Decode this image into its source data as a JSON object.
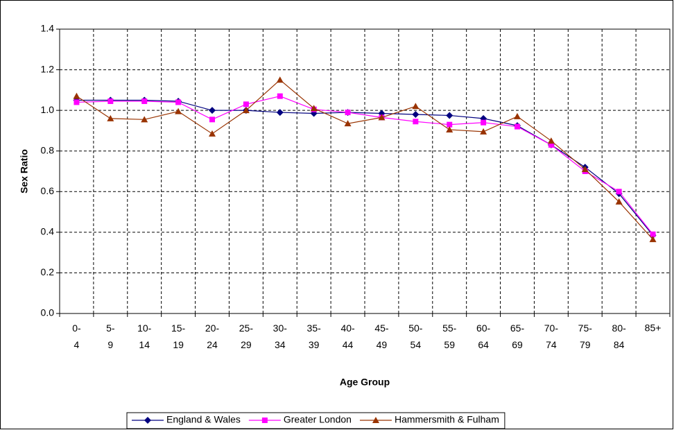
{
  "chart_data": {
    "type": "line",
    "x_label": "Age Group",
    "y_label": "Sex Ratio",
    "categories": [
      "0-4",
      "5-9",
      "10-14",
      "15-19",
      "20-24",
      "25-29",
      "30-34",
      "35-39",
      "40-44",
      "45-49",
      "50-54",
      "55-59",
      "60-64",
      "65-69",
      "70-74",
      "75-79",
      "80-84",
      "85+"
    ],
    "series": [
      {
        "name": "England & Wales",
        "color": "#000080",
        "marker": "diamond",
        "values": [
          1.05,
          1.05,
          1.05,
          1.045,
          1.0,
          1.0,
          0.99,
          0.985,
          0.99,
          0.985,
          0.98,
          0.975,
          0.96,
          0.925,
          0.83,
          0.72,
          0.59,
          0.385
        ]
      },
      {
        "name": "Greater London",
        "color": "#ff00ff",
        "marker": "square",
        "values": [
          1.04,
          1.045,
          1.045,
          1.04,
          0.955,
          1.03,
          1.07,
          1.005,
          0.99,
          0.965,
          0.945,
          0.93,
          0.94,
          0.92,
          0.83,
          0.7,
          0.6,
          0.39
        ]
      },
      {
        "name": "Hammersmith & Fulham",
        "color": "#993300",
        "marker": "triangle",
        "values": [
          1.07,
          0.96,
          0.955,
          0.995,
          0.885,
          1.0,
          1.15,
          1.01,
          0.935,
          0.965,
          1.02,
          0.905,
          0.895,
          0.97,
          0.85,
          0.71,
          0.55,
          0.365
        ]
      }
    ],
    "ylim": [
      0,
      1.4
    ],
    "yticks": [
      {
        "value": 0,
        "label": "0.0"
      },
      0.2,
      0.4,
      0.6,
      0.8,
      {
        "value": 1,
        "label": "1.0"
      },
      1.2,
      1.4
    ],
    "grid": true,
    "legend": "bottom"
  }
}
